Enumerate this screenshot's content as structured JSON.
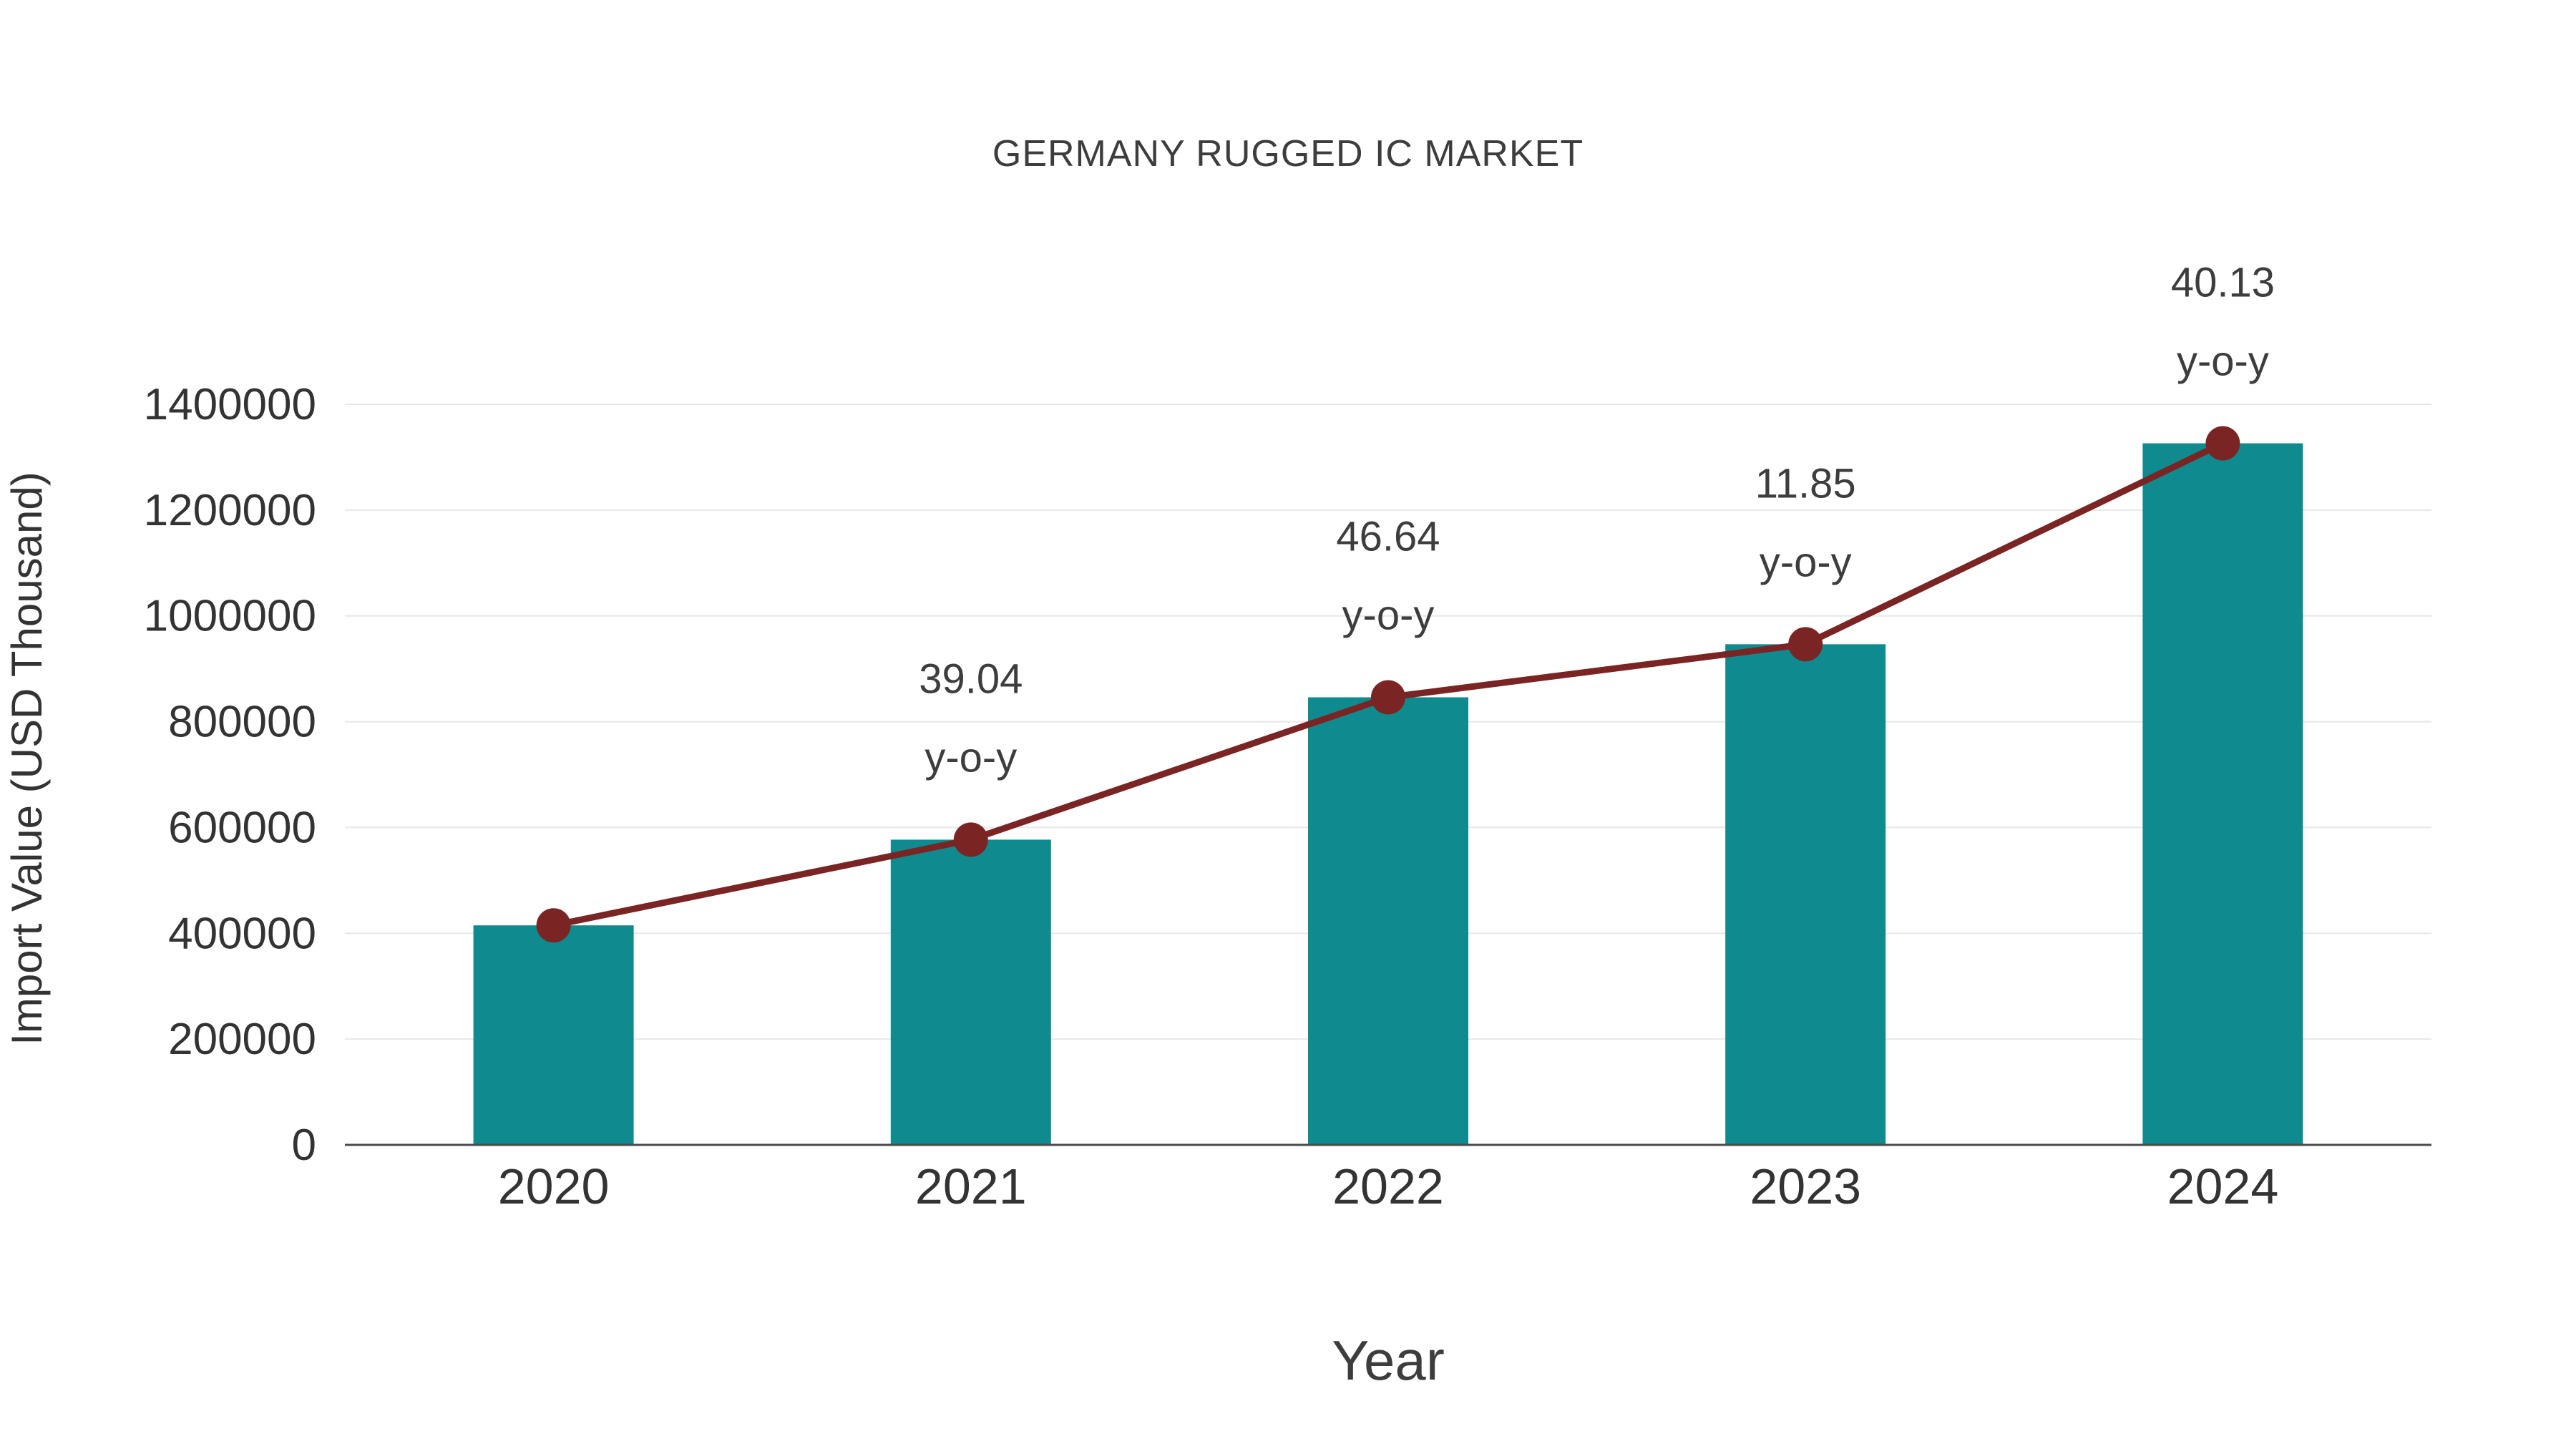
{
  "chart_data": {
    "type": "bar",
    "title": "GERMANY RUGGED IC MARKET",
    "xlabel": "Year",
    "ylabel": "Import Value (USD Thousand)",
    "categories": [
      "2020",
      "2021",
      "2022",
      "2023",
      "2024"
    ],
    "series": [
      {
        "name": "Import Value (USD Thousand)",
        "type": "bar",
        "color": "#0f8b8f",
        "values": [
          415000,
          577000,
          846100,
          946400,
          1326200
        ]
      },
      {
        "name": "y-o-y growth",
        "type": "line",
        "color": "#7a2424",
        "values": [
          415000,
          577000,
          846100,
          946400,
          1326200
        ],
        "annotations": [
          null,
          "39.04",
          "46.64",
          "11.85",
          "40.13"
        ],
        "annotation_suffix": "y-o-y"
      }
    ],
    "ylim": [
      0,
      1400000
    ],
    "ytick_step": 200000,
    "ytick_labels": [
      "0",
      "200000",
      "400000",
      "600000",
      "800000",
      "1000000",
      "1200000",
      "1400000"
    ],
    "grid": true,
    "legend": "none",
    "colors": {
      "bar": "#0f8b8f",
      "line": "#7a2424",
      "grid": "#e7e7e7",
      "axis": "#4a4a4a",
      "text": "#3d3d3d",
      "tick_text": "#333333"
    }
  }
}
